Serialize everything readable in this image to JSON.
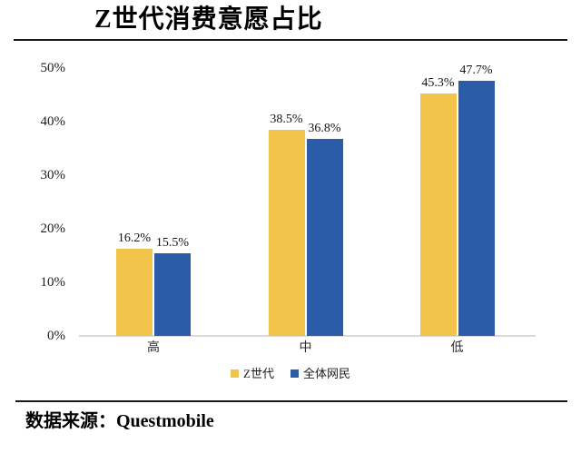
{
  "header": {
    "title": "Z世代消费意愿占比"
  },
  "chart_data": {
    "type": "bar",
    "title": "Z世代消费意愿占比",
    "categories": [
      "高",
      "中",
      "低"
    ],
    "series": [
      {
        "name": "Z世代",
        "color": "#F1C34B",
        "values": [
          16.2,
          38.5,
          45.3
        ],
        "labels": [
          "16.2%",
          "38.5%",
          "45.3%"
        ]
      },
      {
        "name": "全体网民",
        "color": "#2A5CA8",
        "values": [
          15.5,
          36.8,
          47.7
        ],
        "labels": [
          "15.5%",
          "36.8%",
          "47.7%"
        ]
      }
    ],
    "y_ticks": [
      {
        "value": 0,
        "label": "0%"
      },
      {
        "value": 10,
        "label": "10%"
      },
      {
        "value": 20,
        "label": "20%"
      },
      {
        "value": 30,
        "label": "30%"
      },
      {
        "value": 40,
        "label": "40%"
      },
      {
        "value": 50,
        "label": "50%"
      }
    ],
    "ylim": [
      0,
      50
    ],
    "grid": false,
    "legend_position": "bottom-center",
    "axis_line_color": "#D9D9D9"
  },
  "footer": {
    "source": "数据来源：Questmobile"
  }
}
